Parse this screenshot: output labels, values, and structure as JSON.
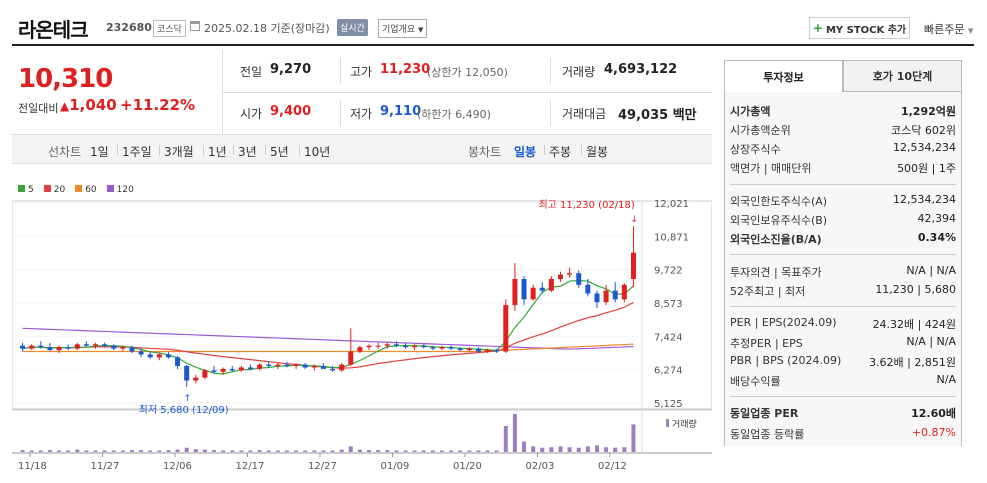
{
  "header": {
    "name": "라온테크",
    "code": "232680",
    "market": "코스닥",
    "date": "2025.02.18 기준(장마감)",
    "realtime": "실시간",
    "corp_info": "기업개요",
    "mystock": "MY STOCK 추가",
    "quick_order": "빠른주문"
  },
  "quote": {
    "price": "10,310",
    "change_label": "전일대비",
    "change": "1,040",
    "change_pct": "+11.22%",
    "prev_label": "전일",
    "prev": "9,270",
    "high_label": "고가",
    "high": "11,230",
    "upper_limit": "(상한가 12,050)",
    "volume_label": "거래량",
    "volume": "4,693,122",
    "open_label": "시가",
    "open": "9,400",
    "low_label": "저가",
    "low": "9,110",
    "lower_limit": "(하한가 6,490)",
    "amount_label": "거래대금",
    "amount": "49,035",
    "amount_unit": "백만"
  },
  "periods": {
    "label": "선차트",
    "items": [
      "1일",
      "1주일",
      "3개월",
      "1년",
      "3년",
      "5년",
      "10년"
    ],
    "candle_label": "봉차트",
    "candle_items": [
      "일봉",
      "주봉",
      "월봉"
    ],
    "active_candle": "일봉"
  },
  "chart_data": {
    "type": "candlestick",
    "legend": [
      {
        "name": "5",
        "color": "#3aa63a"
      },
      {
        "name": "20",
        "color": "#e04040"
      },
      {
        "name": "60",
        "color": "#f08a2a"
      },
      {
        "name": "120",
        "color": "#9b59d0"
      }
    ],
    "y_ticks": [
      "12,021",
      "10,871",
      "9,722",
      "8,573",
      "7,424",
      "6,274",
      "5,125"
    ],
    "ylim": [
      5125,
      12021
    ],
    "x_ticks": [
      "11/18",
      "11/27",
      "12/06",
      "12/17",
      "12/27",
      "01/09",
      "01/20",
      "02/03",
      "02/12"
    ],
    "high_annotation": "최고 11,230 (02/18)",
    "low_annotation": "최저 5,680 (12/09)",
    "volume_label": "거래량",
    "candles": [
      [
        7100,
        7200,
        6900,
        7000
      ],
      [
        7000,
        7150,
        6950,
        7100
      ],
      [
        7100,
        7250,
        7000,
        7050
      ],
      [
        7050,
        7200,
        6900,
        6950
      ],
      [
        6950,
        7100,
        6850,
        7050
      ],
      [
        7050,
        7150,
        6950,
        7000
      ],
      [
        7000,
        7200,
        6950,
        7150
      ],
      [
        7150,
        7250,
        7050,
        7100
      ],
      [
        7100,
        7200,
        7000,
        7150
      ],
      [
        7150,
        7200,
        7050,
        7100
      ],
      [
        7100,
        7150,
        6950,
        7000
      ],
      [
        7000,
        7100,
        6900,
        7050
      ],
      [
        7050,
        7100,
        6850,
        6900
      ],
      [
        6900,
        7000,
        6700,
        6800
      ],
      [
        6800,
        6900,
        6650,
        6700
      ],
      [
        6700,
        6850,
        6600,
        6800
      ],
      [
        6800,
        6900,
        6650,
        6700
      ],
      [
        6700,
        6750,
        6300,
        6400
      ],
      [
        6400,
        6450,
        5680,
        5900
      ],
      [
        5900,
        6100,
        5800,
        6000
      ],
      [
        6000,
        6300,
        5950,
        6250
      ],
      [
        6250,
        6400,
        6150,
        6200
      ],
      [
        6200,
        6350,
        6100,
        6300
      ],
      [
        6300,
        6400,
        6200,
        6250
      ],
      [
        6250,
        6400,
        6200,
        6350
      ],
      [
        6350,
        6450,
        6250,
        6300
      ],
      [
        6300,
        6500,
        6250,
        6450
      ],
      [
        6450,
        6550,
        6350,
        6400
      ],
      [
        6400,
        6500,
        6300,
        6450
      ],
      [
        6450,
        6550,
        6350,
        6400
      ],
      [
        6400,
        6500,
        6300,
        6450
      ],
      [
        6450,
        6500,
        6300,
        6350
      ],
      [
        6350,
        6450,
        6250,
        6400
      ],
      [
        6400,
        6500,
        6300,
        6300
      ],
      [
        6300,
        6400,
        6200,
        6250
      ],
      [
        6250,
        6500,
        6200,
        6450
      ],
      [
        6450,
        7700,
        6400,
        6900
      ],
      [
        6900,
        7100,
        6850,
        7050
      ],
      [
        7050,
        7150,
        6950,
        7100
      ],
      [
        7100,
        7200,
        7000,
        7100
      ],
      [
        7100,
        7200,
        7000,
        7150
      ],
      [
        7150,
        7250,
        7050,
        7100
      ],
      [
        7100,
        7200,
        7000,
        7050
      ],
      [
        7050,
        7150,
        6950,
        7100
      ],
      [
        7100,
        7150,
        7000,
        7050
      ],
      [
        7050,
        7100,
        6950,
        7000
      ],
      [
        7000,
        7100,
        6950,
        7050
      ],
      [
        7050,
        7100,
        6950,
        7000
      ],
      [
        7000,
        7050,
        6900,
        6950
      ],
      [
        6950,
        7050,
        6900,
        7000
      ],
      [
        7000,
        7050,
        6850,
        6900
      ],
      [
        6900,
        7000,
        6850,
        6950
      ],
      [
        6950,
        7000,
        6850,
        6900
      ],
      [
        6900,
        8700,
        6850,
        8500
      ],
      [
        8500,
        9950,
        8300,
        9400
      ],
      [
        9400,
        9500,
        8500,
        8700
      ],
      [
        8700,
        9200,
        8650,
        9100
      ],
      [
        9100,
        9300,
        8900,
        9000
      ],
      [
        9000,
        9500,
        8950,
        9400
      ],
      [
        9400,
        9650,
        9300,
        9550
      ],
      [
        9550,
        9800,
        9450,
        9600
      ],
      [
        9600,
        9700,
        9100,
        9200
      ],
      [
        9200,
        9400,
        8800,
        8900
      ],
      [
        8900,
        9000,
        8400,
        8600
      ],
      [
        8600,
        9200,
        8500,
        9000
      ],
      [
        9000,
        9300,
        8600,
        8700
      ],
      [
        8700,
        9250,
        8600,
        9200
      ],
      [
        9400,
        11230,
        9110,
        10310
      ]
    ],
    "volumes": [
      4,
      3,
      3,
      4,
      3,
      3,
      5,
      3,
      3,
      3,
      3,
      3,
      4,
      4,
      3,
      3,
      4,
      5,
      9,
      6,
      5,
      4,
      3,
      3,
      3,
      3,
      4,
      3,
      3,
      3,
      3,
      3,
      3,
      3,
      3,
      5,
      12,
      5,
      4,
      4,
      4,
      3,
      3,
      3,
      3,
      3,
      3,
      3,
      3,
      3,
      3,
      3,
      3,
      55,
      80,
      22,
      12,
      9,
      10,
      12,
      10,
      9,
      12,
      14,
      10,
      9,
      10,
      58
    ]
  },
  "info": {
    "tab_active": "투자정보",
    "tab_other": "호가 10단계",
    "rows": [
      {
        "k": "시가총액",
        "v": "1,292억원",
        "bold": true
      },
      {
        "k": "시가총액순위",
        "v": "코스닥 602위"
      },
      {
        "k": "상장주식수",
        "v": "12,534,234"
      },
      {
        "k": "액면가 | 매매단위",
        "v": "500원 | 1주"
      },
      {
        "k": "외국인한도주식수(A)",
        "v": "12,534,234"
      },
      {
        "k": "외국인보유주식수(B)",
        "v": "42,394"
      },
      {
        "k": "외국인소진율(B/A)",
        "v": "0.34%",
        "bold": true
      },
      {
        "k": "투자의견 | 목표주가",
        "v": "N/A | N/A"
      },
      {
        "k": "52주최고 | 최저",
        "v": "11,230 | 5,680"
      },
      {
        "k": "PER | EPS(2024.09)",
        "v": "24.32배 | 424원"
      },
      {
        "k": "추정PER | EPS",
        "v": "N/A | N/A"
      },
      {
        "k": "PBR | BPS (2024.09)",
        "v": "3.62배 | 2,851원"
      },
      {
        "k": "배당수익률",
        "v": "N/A"
      },
      {
        "k": "동일업종 PER",
        "v": "12.60배",
        "bold": true
      },
      {
        "k": "동일업종 등락률",
        "v": "+0.87%",
        "red": true
      }
    ]
  }
}
